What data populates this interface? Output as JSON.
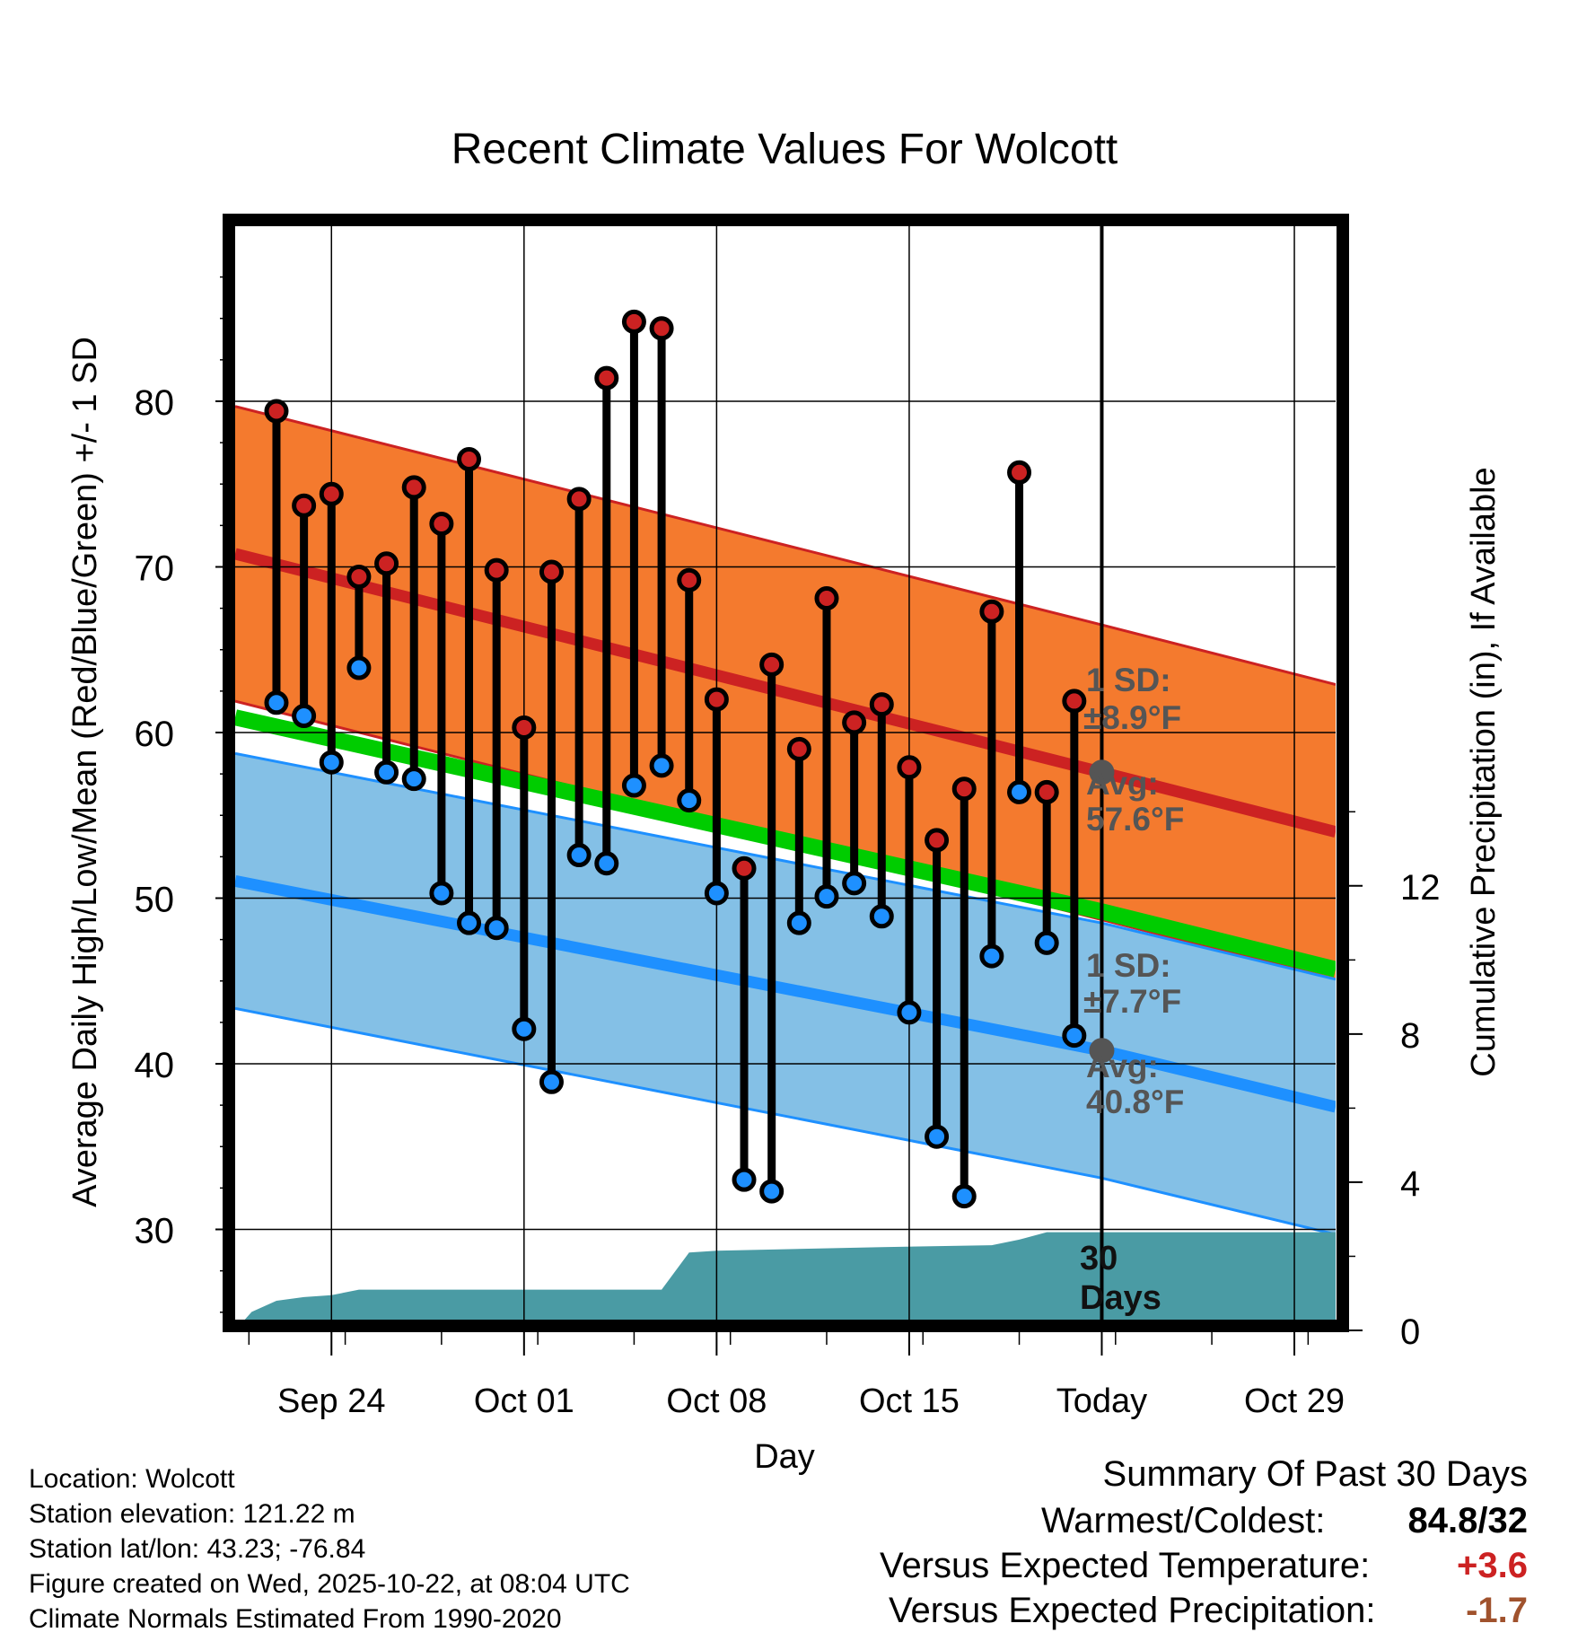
{
  "chart_data": {
    "type": "line",
    "title": "Recent Climate Values For Wolcott",
    "xlabel": "Day",
    "ylabel_left": "Average Daily High/Low/Mean (Red/Blue/Green) +/- 1 SD",
    "ylabel_right": "Cumulative Precipitation (in), If Available",
    "ylim_left": [
      24.5,
      91
    ],
    "ylim_right": [
      0,
      30
    ],
    "yticks_left": [
      30,
      40,
      50,
      60,
      70,
      80
    ],
    "yticks_right": [
      0,
      4,
      8,
      12
    ],
    "xlim_days": [
      -30.5,
      9.5
    ],
    "xticks": [
      {
        "day": -27,
        "label": "Sep 24"
      },
      {
        "day": -20,
        "label": "Oct 01"
      },
      {
        "day": -13,
        "label": "Oct 08"
      },
      {
        "day": -6,
        "label": "Oct 15"
      },
      {
        "day": 1,
        "label": "Today"
      },
      {
        "day": 8,
        "label": "Oct 29"
      }
    ],
    "days": [
      -29,
      -28,
      -27,
      -26,
      -25,
      -24,
      -23,
      -22,
      -21,
      -20,
      -19,
      -18,
      -17,
      -16,
      -15,
      -14,
      -13,
      -12,
      -11,
      -10,
      -9,
      -8,
      -7,
      -6,
      -5,
      -4,
      -3,
      -2,
      -1,
      0
    ],
    "highs": [
      79.4,
      73.7,
      74.4,
      69.4,
      70.2,
      74.8,
      72.6,
      76.5,
      69.8,
      60.3,
      69.7,
      74.1,
      81.4,
      84.8,
      84.4,
      69.2,
      62.0,
      51.8,
      64.1,
      59.0,
      68.1,
      60.6,
      61.7,
      57.9,
      53.5,
      56.6,
      67.3,
      75.7,
      56.4,
      61.9
    ],
    "lows": [
      61.8,
      61.0,
      58.2,
      63.9,
      57.6,
      57.2,
      50.3,
      48.5,
      48.2,
      42.1,
      38.9,
      52.6,
      52.1,
      56.8,
      58.0,
      55.9,
      50.3,
      33.0,
      32.3,
      48.5,
      50.1,
      50.9,
      48.9,
      43.1,
      35.6,
      32.0,
      46.5,
      56.4,
      47.3,
      41.7
    ],
    "normals": {
      "high_avg": [
        71.0,
        57.6,
        54.0
      ],
      "high_sd": 8.9,
      "low_avg": [
        51.2,
        40.8,
        37.4
      ],
      "low_sd": 7.7,
      "mean_avg": [
        61.1,
        49.2,
        45.7
      ],
      "anchor_days": [
        -31,
        1,
        9.5
      ]
    },
    "precip_cumulative": [
      {
        "day": -30.5,
        "in": 0.0
      },
      {
        "day": -29.9,
        "in": 0.5
      },
      {
        "day": -29,
        "in": 0.8
      },
      {
        "day": -28,
        "in": 0.9
      },
      {
        "day": -27,
        "in": 0.95
      },
      {
        "day": -26,
        "in": 1.1
      },
      {
        "day": -15,
        "in": 1.1
      },
      {
        "day": -14,
        "in": 2.1
      },
      {
        "day": -13,
        "in": 2.15
      },
      {
        "day": -7,
        "in": 2.25
      },
      {
        "day": -3,
        "in": 2.3
      },
      {
        "day": -2,
        "in": 2.45
      },
      {
        "day": -1,
        "in": 2.65
      },
      {
        "day": 9.5,
        "in": 2.65
      }
    ],
    "annotations": {
      "high_sd_title": "1 SD:",
      "high_sd_value": "±8.9°F",
      "high_avg_title": "Avg:",
      "high_avg_value": "57.6°F",
      "low_sd_title": "1 SD:",
      "low_sd_value": "±7.7°F",
      "low_avg_title": "Avg:",
      "low_avg_value": "40.8°F",
      "days_number": "30",
      "days_word": "Days"
    },
    "colors": {
      "high_band": "#f47a2e",
      "high_line": "#cc2222",
      "low_band": "#84c0e6",
      "low_line": "#1e90ff",
      "mean_line": "#00cc00",
      "precip": "#4a9ba4",
      "high_dot": "#cc2222",
      "low_dot": "#1e90ff",
      "annotation": "#555555"
    }
  },
  "info": {
    "location": "Location: Wolcott",
    "elevation": "Station elevation: 121.22 m",
    "latlon": "Station lat/lon: 43.23; -76.84",
    "created": "Figure created on Wed, 2025-10-22, at 08:04 UTC",
    "normals": "Climate Normals Estimated From 1990-2020"
  },
  "summary": {
    "title": "Summary Of Past 30 Days",
    "warmest_label": "Warmest/Coldest:",
    "warmest_value": "84.8/32",
    "temp_label": "Versus Expected Temperature:",
    "temp_value": "+3.6",
    "temp_color": "#cc2222",
    "precip_label": "Versus Expected Precipitation:",
    "precip_value": "-1.7",
    "precip_color": "#a0522d"
  }
}
